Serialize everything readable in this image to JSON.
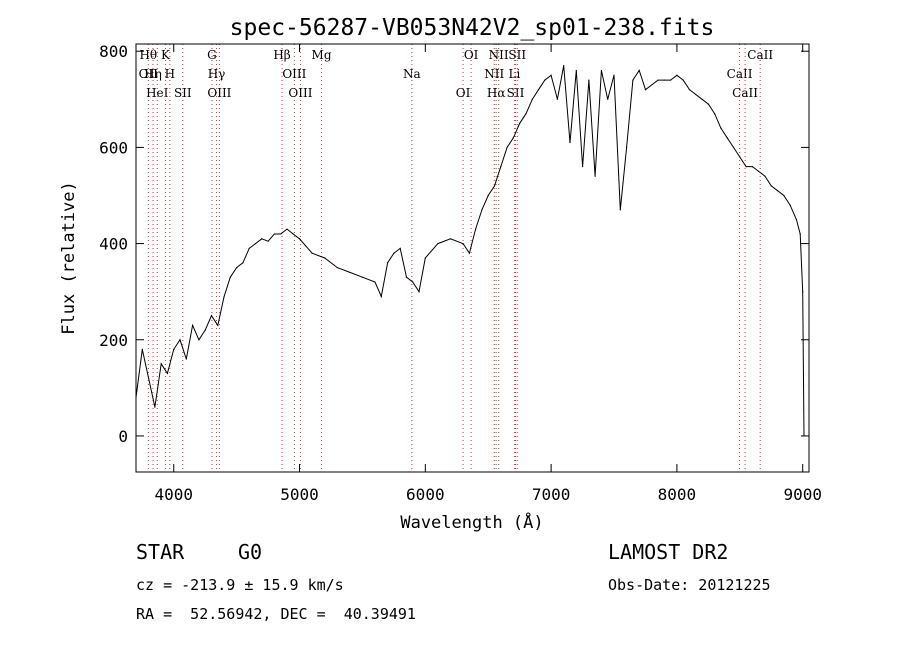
{
  "chart_data": {
    "type": "line",
    "title": "spec-56287-VB053N42V2_sp01-238.fits",
    "xlabel": "Wavelength (Å)",
    "ylabel": "Flux (relative)",
    "xlim": [
      3700,
      9050
    ],
    "ylim": [
      -75,
      815
    ],
    "xticks": [
      4000,
      5000,
      6000,
      7000,
      8000,
      9000
    ],
    "yticks": [
      0,
      200,
      400,
      600,
      800
    ],
    "grid": false,
    "line_color": "#000000",
    "line_marker_color": "#cc3333",
    "series": [
      {
        "x": [
          3700,
          3750,
          3800,
          3850,
          3900,
          3950,
          4000,
          4050,
          4100,
          4150,
          4200,
          4250,
          4300,
          4350,
          4400,
          4450,
          4500,
          4550,
          4600,
          4650,
          4700,
          4750,
          4800,
          4850,
          4900,
          4950,
          5000,
          5100,
          5200,
          5300,
          5400,
          5500,
          5600,
          5650,
          5700,
          5750,
          5800,
          5850,
          5900,
          5950,
          6000,
          6100,
          6200,
          6300,
          6350,
          6400,
          6450,
          6500,
          6550,
          6600,
          6650,
          6700,
          6750,
          6800,
          6850,
          6900,
          6950,
          7000,
          7050,
          7100,
          7150,
          7200,
          7250,
          7300,
          7350,
          7400,
          7450,
          7500,
          7550,
          7600,
          7650,
          7700,
          7750,
          7800,
          7850,
          7900,
          7950,
          8000,
          8050,
          8100,
          8150,
          8200,
          8250,
          8300,
          8350,
          8400,
          8450,
          8500,
          8550,
          8600,
          8650,
          8700,
          8750,
          8800,
          8850,
          8900,
          8950,
          8980,
          9000,
          9010
        ],
        "values": [
          80,
          180,
          120,
          60,
          150,
          130,
          180,
          200,
          160,
          230,
          200,
          220,
          250,
          230,
          290,
          330,
          350,
          360,
          390,
          400,
          410,
          405,
          420,
          420,
          430,
          420,
          410,
          380,
          370,
          350,
          340,
          330,
          320,
          290,
          360,
          380,
          390,
          330,
          320,
          300,
          370,
          400,
          410,
          400,
          380,
          430,
          470,
          500,
          520,
          560,
          600,
          620,
          650,
          670,
          700,
          720,
          740,
          750,
          700,
          770,
          610,
          760,
          560,
          740,
          540,
          760,
          700,
          750,
          470,
          600,
          740,
          760,
          720,
          730,
          740,
          740,
          740,
          750,
          740,
          720,
          710,
          700,
          690,
          670,
          640,
          620,
          600,
          580,
          560,
          560,
          550,
          540,
          520,
          510,
          500,
          480,
          450,
          420,
          300,
          0
        ]
      }
    ],
    "spectral_lines": [
      {
        "wl": 3798,
        "labels": [
          "Hθ",
          "OII"
        ]
      },
      {
        "wl": 3835,
        "labels": [
          "Hη"
        ]
      },
      {
        "wl": 3869,
        "labels": [
          "HeI"
        ]
      },
      {
        "wl": 3934,
        "labels": [
          "K"
        ]
      },
      {
        "wl": 3969,
        "labels": [
          "H"
        ]
      },
      {
        "wl": 4072,
        "labels": [
          "SII"
        ]
      },
      {
        "wl": 4304,
        "labels": [
          "G"
        ]
      },
      {
        "wl": 4340,
        "labels": [
          "Hγ"
        ]
      },
      {
        "wl": 4363,
        "labels": [
          "OIII"
        ]
      },
      {
        "wl": 4861,
        "labels": [
          "Hβ"
        ]
      },
      {
        "wl": 4959,
        "labels": [
          "OIII"
        ]
      },
      {
        "wl": 5007,
        "labels": [
          "OIII"
        ]
      },
      {
        "wl": 5175,
        "labels": [
          "Mg"
        ]
      },
      {
        "wl": 5893,
        "labels": [
          "Na"
        ]
      },
      {
        "wl": 6300,
        "labels": [
          "OI"
        ]
      },
      {
        "wl": 6364,
        "labels": [
          "OI"
        ]
      },
      {
        "wl": 6548,
        "labels": [
          "NII"
        ]
      },
      {
        "wl": 6563,
        "labels": [
          "Hα"
        ]
      },
      {
        "wl": 6583,
        "labels": [
          "NII"
        ]
      },
      {
        "wl": 6708,
        "labels": [
          "Li"
        ]
      },
      {
        "wl": 6717,
        "labels": [
          "SII"
        ]
      },
      {
        "wl": 6731,
        "labels": [
          "SII"
        ]
      },
      {
        "wl": 8498,
        "labels": [
          "CaII"
        ]
      },
      {
        "wl": 8542,
        "labels": [
          "CaII"
        ]
      },
      {
        "wl": 8662,
        "labels": [
          "CaII"
        ]
      }
    ]
  },
  "info": {
    "object_class": "STAR",
    "subclass": "G0",
    "cz": "cz = -213.9 ± 15.9 km/s",
    "radec": "RA =  52.56942, DEC =  40.39491",
    "survey": "LAMOST DR2",
    "obs_date": "Obs-Date: 20121225"
  }
}
